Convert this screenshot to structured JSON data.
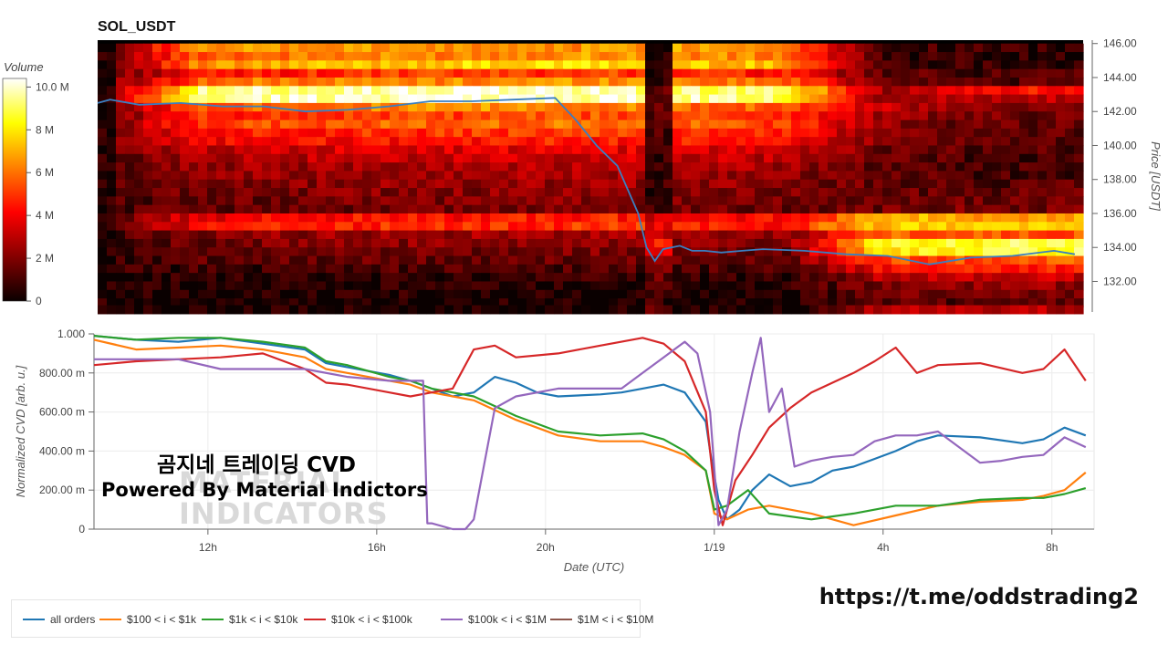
{
  "header": {
    "title": "SOL_USDT"
  },
  "colorbar": {
    "label": "Volume",
    "ticks": [
      "10.0 M",
      "8 M",
      "6 M",
      "4 M",
      "2 M",
      "0"
    ]
  },
  "overlay": {
    "line1": "곰지네 트레이딩 CVD",
    "line2": "Powered By Material Indictors",
    "watermark_line1": "MATERIAL",
    "watermark_line2": "INDICATORS"
  },
  "link": "https://t.me/oddstrading2",
  "legend": [
    {
      "label": "all orders",
      "color": "#1f77b4"
    },
    {
      "label": "$100 < i < $1k",
      "color": "#ff7f0e"
    },
    {
      "label": "$1k < i < $10k",
      "color": "#2ca02c"
    },
    {
      "label": "$10k < i < $100k",
      "color": "#d62728"
    },
    {
      "label": "$100k < i < $1M",
      "color": "#9467bd"
    },
    {
      "label": "$1M < i < $10M",
      "color": "#8c564b"
    }
  ],
  "chart_data": [
    {
      "type": "heatmap",
      "title": "SOL_USDT",
      "ylabel": "Price [USDT]",
      "ylim": [
        130.2,
        146.2
      ],
      "yticks": [
        146,
        144,
        142,
        140,
        138,
        136,
        134,
        132
      ],
      "ytick_labels": [
        "146.00",
        "144.00",
        "142.00",
        "140.00",
        "138.00",
        "136.00",
        "134.00",
        "132.00"
      ],
      "colorbar_range": [
        0,
        10000000
      ],
      "price_line": {
        "color": "#3a7fc1",
        "x": [
          0,
          0.3,
          1,
          2,
          3,
          4,
          5,
          6,
          7,
          8,
          9,
          10,
          11,
          11.5,
          12,
          12.5,
          13,
          13.2,
          13.4,
          13.6,
          13.8,
          14,
          14.3,
          14.6,
          15,
          15.5,
          16,
          17,
          18,
          19,
          20,
          21,
          22,
          23,
          23.5
        ],
        "y": [
          142.5,
          142.7,
          142.4,
          142.5,
          142.3,
          142.3,
          142.0,
          142.1,
          142.3,
          142.6,
          142.6,
          142.7,
          142.8,
          141.5,
          140.0,
          138.8,
          136.0,
          134.0,
          133.2,
          133.9,
          134.0,
          134.1,
          133.8,
          133.8,
          133.7,
          133.8,
          133.9,
          133.8,
          133.6,
          133.5,
          133.0,
          133.4,
          133.5,
          133.8,
          133.6
        ]
      },
      "heat_rows": [
        {
          "price": 145.75,
          "levels": [
            0.15,
            0.62,
            0.62,
            0.62,
            0.62,
            0.64,
            0.66,
            0.62,
            0.1,
            0.07,
            0.06
          ]
        },
        {
          "price": 145.25,
          "levels": [
            0.15,
            0.55,
            0.58,
            0.6,
            0.62,
            0.65,
            0.62,
            0.58,
            0.08,
            0.06,
            0.05
          ]
        },
        {
          "price": 144.75,
          "levels": [
            0.15,
            0.6,
            0.68,
            0.72,
            0.74,
            0.76,
            0.72,
            0.68,
            0.1,
            0.08,
            0.07
          ]
        },
        {
          "price": 144.25,
          "levels": [
            0.15,
            0.4,
            0.45,
            0.48,
            0.48,
            0.5,
            0.46,
            0.42,
            0.12,
            0.1,
            0.1
          ]
        },
        {
          "price": 143.75,
          "levels": [
            0.15,
            0.55,
            0.6,
            0.6,
            0.62,
            0.64,
            0.6,
            0.56,
            0.18,
            0.12,
            0.12
          ]
        },
        {
          "price": 143.25,
          "levels": [
            0.15,
            0.88,
            0.93,
            0.95,
            0.96,
            0.94,
            0.9,
            0.85,
            0.25,
            0.42,
            0.4
          ]
        },
        {
          "price": 142.75,
          "levels": [
            0.15,
            0.9,
            0.95,
            0.96,
            0.97,
            0.95,
            0.92,
            0.86,
            0.22,
            0.3,
            0.28
          ]
        },
        {
          "price": 142.25,
          "levels": [
            0.15,
            0.55,
            0.58,
            0.6,
            0.62,
            0.6,
            0.58,
            0.55,
            0.3,
            0.18,
            0.18
          ]
        },
        {
          "price": 141.75,
          "levels": [
            0.15,
            0.45,
            0.48,
            0.5,
            0.5,
            0.52,
            0.5,
            0.48,
            0.25,
            0.16,
            0.16
          ]
        },
        {
          "price": 141.25,
          "levels": [
            0.15,
            0.5,
            0.52,
            0.55,
            0.56,
            0.58,
            0.54,
            0.5,
            0.22,
            0.14,
            0.14
          ]
        },
        {
          "price": 140.75,
          "levels": [
            0.15,
            0.42,
            0.45,
            0.46,
            0.48,
            0.5,
            0.46,
            0.44,
            0.2,
            0.14,
            0.13
          ]
        },
        {
          "price": 140.25,
          "levels": [
            0.15,
            0.38,
            0.4,
            0.42,
            0.42,
            0.45,
            0.42,
            0.4,
            0.18,
            0.12,
            0.12
          ]
        },
        {
          "price": 139.75,
          "levels": [
            0.15,
            0.3,
            0.32,
            0.34,
            0.34,
            0.36,
            0.34,
            0.32,
            0.16,
            0.11,
            0.11
          ]
        },
        {
          "price": 139.25,
          "levels": [
            0.12,
            0.26,
            0.28,
            0.3,
            0.3,
            0.32,
            0.3,
            0.28,
            0.14,
            0.1,
            0.1
          ]
        },
        {
          "price": 138.75,
          "levels": [
            0.12,
            0.22,
            0.24,
            0.26,
            0.26,
            0.28,
            0.26,
            0.24,
            0.14,
            0.1,
            0.1
          ]
        },
        {
          "price": 138.25,
          "levels": [
            0.1,
            0.2,
            0.22,
            0.24,
            0.24,
            0.26,
            0.24,
            0.22,
            0.14,
            0.1,
            0.1
          ]
        },
        {
          "price": 137.75,
          "levels": [
            0.1,
            0.18,
            0.2,
            0.22,
            0.22,
            0.24,
            0.22,
            0.2,
            0.15,
            0.12,
            0.12
          ]
        },
        {
          "price": 137.25,
          "levels": [
            0.1,
            0.16,
            0.18,
            0.2,
            0.2,
            0.22,
            0.2,
            0.18,
            0.14,
            0.14,
            0.14
          ]
        },
        {
          "price": 136.75,
          "levels": [
            0.1,
            0.14,
            0.16,
            0.18,
            0.18,
            0.2,
            0.18,
            0.16,
            0.14,
            0.16,
            0.16
          ]
        },
        {
          "price": 136.25,
          "levels": [
            0.1,
            0.14,
            0.16,
            0.16,
            0.16,
            0.18,
            0.16,
            0.15,
            0.16,
            0.18,
            0.18
          ]
        },
        {
          "price": 135.75,
          "levels": [
            0.1,
            0.36,
            0.4,
            0.42,
            0.42,
            0.45,
            0.42,
            0.4,
            0.68,
            0.66,
            0.64
          ]
        },
        {
          "price": 135.25,
          "levels": [
            0.1,
            0.4,
            0.44,
            0.46,
            0.46,
            0.48,
            0.46,
            0.44,
            0.72,
            0.7,
            0.7
          ]
        },
        {
          "price": 134.75,
          "levels": [
            0.08,
            0.2,
            0.22,
            0.24,
            0.24,
            0.26,
            0.24,
            0.22,
            0.55,
            0.52,
            0.52
          ]
        },
        {
          "price": 134.25,
          "levels": [
            0.08,
            0.16,
            0.18,
            0.2,
            0.2,
            0.22,
            0.2,
            0.18,
            0.82,
            0.84,
            0.88
          ]
        },
        {
          "price": 133.75,
          "levels": [
            0.06,
            0.14,
            0.15,
            0.16,
            0.16,
            0.18,
            0.16,
            0.15,
            0.78,
            0.82,
            0.86
          ]
        },
        {
          "price": 133.25,
          "levels": [
            0.06,
            0.12,
            0.14,
            0.14,
            0.14,
            0.15,
            0.14,
            0.13,
            0.5,
            0.52,
            0.55
          ]
        },
        {
          "price": 132.75,
          "levels": [
            0.05,
            0.08,
            0.09,
            0.1,
            0.1,
            0.1,
            0.1,
            0.09,
            0.4,
            0.42,
            0.44
          ]
        },
        {
          "price": 132.25,
          "levels": [
            0.04,
            0.05,
            0.05,
            0.06,
            0.06,
            0.06,
            0.05,
            0.05,
            0.28,
            0.3,
            0.3
          ]
        },
        {
          "price": 131.75,
          "levels": [
            0.03,
            0.04,
            0.04,
            0.04,
            0.04,
            0.04,
            0.04,
            0.04,
            0.2,
            0.22,
            0.22
          ]
        },
        {
          "price": 131.25,
          "levels": [
            0.02,
            0.03,
            0.03,
            0.03,
            0.03,
            0.03,
            0.03,
            0.03,
            0.15,
            0.16,
            0.16
          ]
        },
        {
          "price": 130.75,
          "levels": [
            0.02,
            0.02,
            0.02,
            0.02,
            0.02,
            0.02,
            0.02,
            0.02,
            0.12,
            0.12,
            0.12
          ]
        },
        {
          "price": 130.35,
          "levels": [
            0.01,
            0.02,
            0.02,
            0.02,
            0.02,
            0.02,
            0.02,
            0.02,
            0.3,
            0.28,
            0.26
          ]
        }
      ]
    },
    {
      "type": "line",
      "xlabel": "Date (UTC)",
      "ylabel": "Normalized CVD [arb. u.]",
      "ylim": [
        0,
        1
      ],
      "xlim": [
        0,
        23.7
      ],
      "xticks": [
        2.7,
        6.7,
        10.7,
        14.7,
        18.7,
        22.7
      ],
      "xtick_labels": [
        "12h",
        "16h",
        "20h",
        "1/19",
        "4h",
        "8h"
      ],
      "yticks": [
        0,
        0.2,
        0.4,
        0.6,
        0.8,
        1.0
      ],
      "ytick_labels": [
        "0",
        "200.00 m",
        "400.00 m",
        "600.00 m",
        "800.00 m",
        "1.000"
      ],
      "series": [
        {
          "name": "all orders",
          "color": "#1f77b4",
          "x": [
            0,
            1,
            2,
            3,
            4,
            5,
            5.5,
            6,
            7,
            7.5,
            8,
            8.5,
            9,
            9.5,
            10,
            10.5,
            11,
            12,
            12.5,
            13,
            13.5,
            14,
            14.5,
            14.6,
            14.8,
            15,
            15.3,
            15.6,
            16,
            16.5,
            17,
            17.5,
            18,
            18.5,
            19,
            19.5,
            20,
            21,
            22,
            22.5,
            23,
            23.5
          ],
          "y": [
            0.99,
            0.97,
            0.96,
            0.98,
            0.95,
            0.92,
            0.85,
            0.83,
            0.79,
            0.76,
            0.72,
            0.68,
            0.7,
            0.78,
            0.75,
            0.7,
            0.68,
            0.69,
            0.7,
            0.72,
            0.74,
            0.7,
            0.55,
            0.4,
            0.15,
            0.05,
            0.1,
            0.2,
            0.28,
            0.22,
            0.24,
            0.3,
            0.32,
            0.36,
            0.4,
            0.45,
            0.48,
            0.47,
            0.44,
            0.46,
            0.52,
            0.48
          ]
        },
        {
          "name": "$100 < i < $1k",
          "color": "#ff7f0e",
          "x": [
            0,
            1,
            2,
            3,
            4,
            5,
            5.5,
            6,
            7,
            7.5,
            8,
            9,
            10,
            11,
            12,
            13,
            13.5,
            14,
            14.5,
            14.7,
            15,
            15.5,
            16,
            17,
            18,
            19,
            20,
            21,
            22,
            22.5,
            23,
            23.5
          ],
          "y": [
            0.97,
            0.92,
            0.93,
            0.94,
            0.92,
            0.88,
            0.82,
            0.8,
            0.76,
            0.74,
            0.7,
            0.66,
            0.56,
            0.48,
            0.45,
            0.45,
            0.42,
            0.38,
            0.3,
            0.08,
            0.05,
            0.1,
            0.12,
            0.08,
            0.02,
            0.07,
            0.12,
            0.14,
            0.15,
            0.17,
            0.2,
            0.29
          ]
        },
        {
          "name": "$1k < i < $10k",
          "color": "#2ca02c",
          "x": [
            0,
            1,
            2,
            3,
            4,
            5,
            5.5,
            6,
            7,
            7.5,
            8,
            9,
            10,
            11,
            12,
            13,
            13.5,
            14,
            14.5,
            14.7,
            15,
            15.5,
            16,
            17,
            18,
            19,
            20,
            21,
            22,
            22.5,
            23,
            23.5
          ],
          "y": [
            0.99,
            0.97,
            0.98,
            0.98,
            0.96,
            0.93,
            0.86,
            0.84,
            0.78,
            0.76,
            0.72,
            0.68,
            0.58,
            0.5,
            0.48,
            0.49,
            0.46,
            0.4,
            0.3,
            0.1,
            0.12,
            0.2,
            0.08,
            0.05,
            0.08,
            0.12,
            0.12,
            0.15,
            0.16,
            0.16,
            0.18,
            0.21
          ]
        },
        {
          "name": "$10k < i < $100k",
          "color": "#d62728",
          "x": [
            0,
            1,
            2,
            3,
            4,
            5,
            5.5,
            6,
            7,
            7.5,
            8,
            8.5,
            9,
            9.5,
            10,
            11,
            12,
            12.5,
            13,
            13.5,
            14,
            14.5,
            14.7,
            14.9,
            15.2,
            15.6,
            16,
            16.5,
            17,
            17.5,
            18,
            18.5,
            19,
            19.5,
            20,
            21,
            22,
            22.5,
            23,
            23.5
          ],
          "y": [
            0.84,
            0.86,
            0.87,
            0.88,
            0.9,
            0.82,
            0.75,
            0.74,
            0.7,
            0.68,
            0.7,
            0.72,
            0.92,
            0.94,
            0.88,
            0.9,
            0.94,
            0.96,
            0.98,
            0.95,
            0.86,
            0.6,
            0.2,
            0.02,
            0.25,
            0.38,
            0.52,
            0.62,
            0.7,
            0.75,
            0.8,
            0.86,
            0.93,
            0.8,
            0.84,
            0.85,
            0.8,
            0.82,
            0.92,
            0.76
          ]
        },
        {
          "name": "$100k < i < $1M",
          "color": "#9467bd",
          "x": [
            0,
            1,
            2,
            3,
            4,
            5,
            6,
            7,
            7.8,
            7.9,
            8,
            8.5,
            8.8,
            9,
            9.5,
            10,
            11,
            12,
            12.5,
            13,
            13.5,
            14,
            14.3,
            14.6,
            14.8,
            15,
            15.3,
            15.6,
            15.8,
            16,
            16.3,
            16.6,
            17,
            17.5,
            18,
            18.5,
            19,
            19.5,
            20,
            21,
            21.5,
            22,
            22.5,
            23,
            23.5
          ],
          "y": [
            0.87,
            0.87,
            0.87,
            0.82,
            0.82,
            0.82,
            0.78,
            0.76,
            0.76,
            0.03,
            0.03,
            0.0,
            0.0,
            0.05,
            0.62,
            0.68,
            0.72,
            0.72,
            0.72,
            0.8,
            0.88,
            0.96,
            0.9,
            0.6,
            0.02,
            0.1,
            0.5,
            0.8,
            0.98,
            0.6,
            0.72,
            0.32,
            0.35,
            0.37,
            0.38,
            0.45,
            0.48,
            0.48,
            0.5,
            0.34,
            0.35,
            0.37,
            0.38,
            0.47,
            0.42
          ]
        },
        {
          "name": "$1M < i < $10M",
          "color": "#8c564b",
          "x": [],
          "y": []
        }
      ]
    }
  ]
}
